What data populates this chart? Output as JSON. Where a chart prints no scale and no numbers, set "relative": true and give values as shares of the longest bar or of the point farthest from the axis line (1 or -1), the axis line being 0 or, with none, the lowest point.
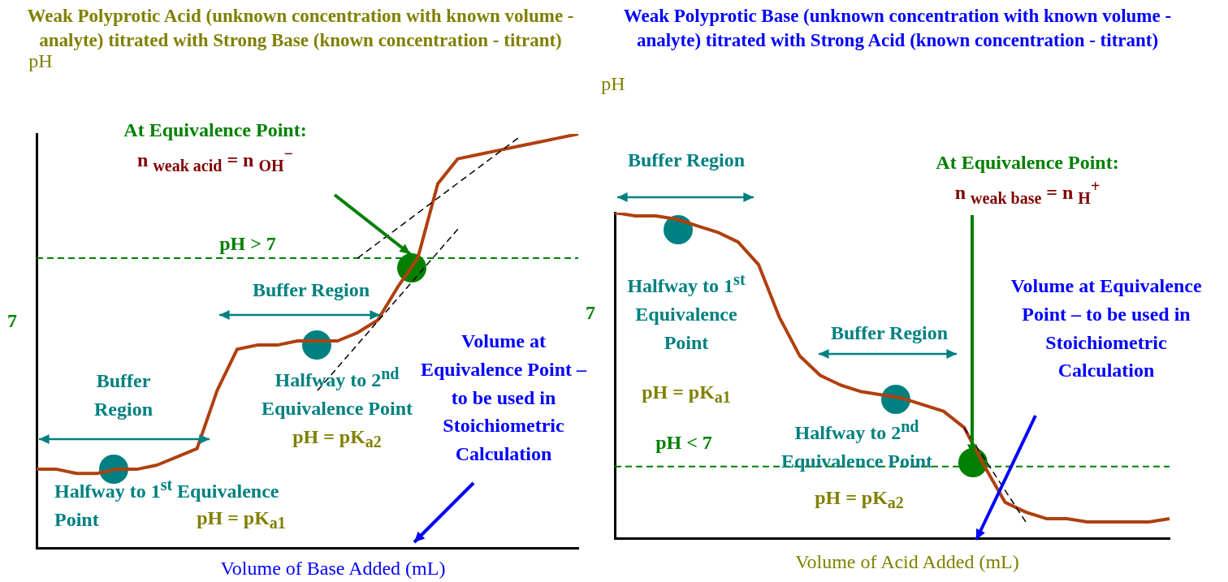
{
  "chart_data": [
    {
      "type": "line",
      "relative": true,
      "title": "Weak Polyprotic Acid (unknown concentration with known volume - analyte) titrated with Strong Base (known concentration - titrant)",
      "xlabel": "Volume of Base Added (mL)",
      "ylabel": "pH",
      "categories": [
        null,
        null,
        null,
        null,
        null,
        null,
        null,
        null,
        null,
        null,
        null,
        null,
        null,
        null,
        null,
        null,
        null,
        null,
        null,
        null,
        null,
        null,
        null,
        null,
        null,
        null,
        null,
        null
      ],
      "series": [
        {
          "color": "#b0400f",
          "values": [
            0.19,
            0.19,
            0.18,
            0.18,
            0.19,
            0.19,
            0.2,
            0.22,
            0.24,
            0.38,
            0.48,
            0.49,
            0.49,
            0.5,
            0.5,
            0.5,
            0.52,
            0.55,
            0.63,
            0.7,
            0.88,
            0.94,
            0.95,
            0.96,
            0.97,
            0.98,
            0.99,
            1
          ]
        },
        {
          "line_style": "dashed",
          "color": "#000000",
          "values": [
            null,
            null,
            null,
            null,
            null,
            null,
            null,
            null,
            null,
            null,
            null,
            null,
            null,
            null,
            null,
            null,
            0.7,
            null,
            null,
            null,
            null,
            null,
            null,
            null,
            0.99,
            null,
            null,
            null
          ]
        },
        {
          "line_style": "dashed",
          "color": "#000000",
          "values": [
            null,
            null,
            null,
            null,
            null,
            null,
            null,
            null,
            null,
            null,
            null,
            null,
            null,
            null,
            0.38,
            null,
            null,
            null,
            null,
            null,
            null,
            0.77,
            null,
            null,
            null,
            null,
            null,
            null
          ]
        }
      ],
      "ref_lines": [
        {
          "axis": "y",
          "value": 0.7,
          "color": "#008000",
          "line_style": "dashed"
        }
      ],
      "annotations": [
        "At Equivalence Point:",
        "n $_{weak acid}$ = n $_{OH}$$^{−}$",
        "pH > 7",
        "Buffer Region",
        "Buffer Region",
        "Halfway to 2$^{nd}$ Equivalence Point",
        "pH = pK$_{a2}$",
        "Volume at Equivalence Point – to be used in Stoichiometric Calculation",
        "Halfway to 1$^{st}$ Equivalence Point",
        "pH = pK$_{a1}$",
        "7"
      ]
    },
    {
      "type": "line",
      "relative": true,
      "title": "Weak Polyprotic Base (unknown concentration with known volume - analyte) titrated with Strong Acid (known concentration - titrant)",
      "xlabel": "Volume of Acid Added (mL)",
      "ylabel": "pH",
      "categories": [
        null,
        null,
        null,
        null,
        null,
        null,
        null,
        null,
        null,
        null,
        null,
        null,
        null,
        null,
        null,
        null,
        null,
        null,
        null,
        null,
        null,
        null,
        null,
        null,
        null,
        null,
        null,
        null
      ],
      "series": [
        {
          "color": "#b0400f",
          "values": [
            1,
            0.99,
            0.99,
            0.98,
            0.96,
            0.94,
            0.91,
            0.84,
            0.68,
            0.56,
            0.5,
            0.47,
            0.45,
            0.44,
            0.43,
            0.41,
            0.39,
            0.34,
            0.22,
            0.11,
            0.08,
            0.06,
            0.06,
            0.05,
            0.05,
            0.05,
            0.05,
            0.06
          ]
        },
        {
          "line_style": "dashed",
          "color": "#000000",
          "values": [
            null,
            null,
            null,
            null,
            null,
            null,
            null,
            null,
            null,
            null,
            null,
            null,
            null,
            null,
            null,
            null,
            null,
            0.34,
            null,
            null,
            0.05,
            null,
            null,
            null,
            null,
            null,
            null,
            null
          ]
        }
      ],
      "ref_lines": [
        {
          "axis": "y",
          "value": 0.22,
          "color": "#008000",
          "line_style": "dashed"
        }
      ],
      "annotations": [
        "Buffer Region",
        "At Equivalence Point:",
        "n $_{weak base}$ = n $_{H}$$^{+}$",
        "Halfway to 1$^{st}$ Equivalence Point",
        "pH = pK$_{a1}$",
        "Buffer Region",
        "Volume at Equivalence Point – to be used in Stoichiometric Calculation",
        "pH < 7",
        "Halfway to 2$^{nd}$ Equivalence Point",
        "pH = pK$_{a2}$",
        "7"
      ]
    }
  ]
}
